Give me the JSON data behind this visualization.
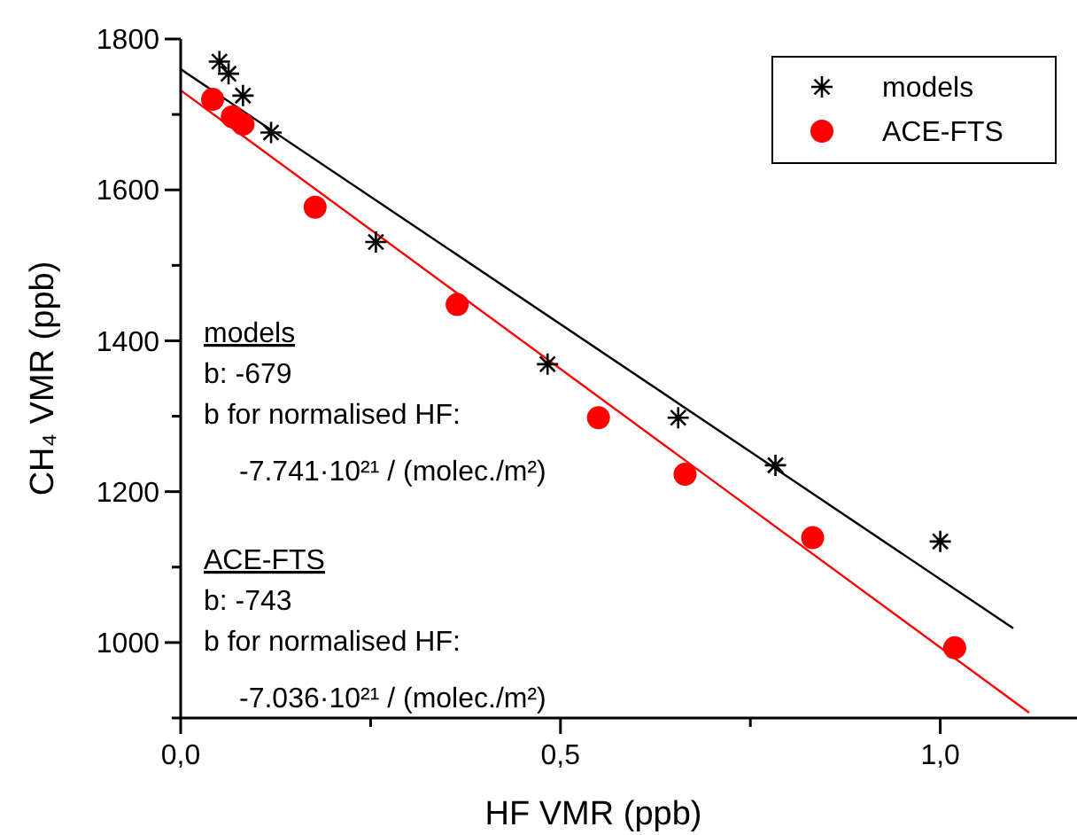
{
  "chart_data": {
    "type": "scatter",
    "xlabel": "HF VMR (ppb)",
    "ylabel": "CH₄ VMR (ppb)",
    "xlim": [
      0,
      1.18
    ],
    "xticks": [
      {
        "value": 0,
        "label": "0,0"
      },
      {
        "value": 0.25,
        "label": null
      },
      {
        "value": 0.5,
        "label": "0,5"
      },
      {
        "value": 0.75,
        "label": null
      },
      {
        "value": 1,
        "label": "1,0"
      }
    ],
    "ylim": [
      900,
      1800
    ],
    "yticks": [
      {
        "value": 900,
        "label": null
      },
      1000,
      {
        "value": 1100,
        "label": null
      },
      1200,
      {
        "value": 1300,
        "label": null
      },
      1400,
      {
        "value": 1500,
        "label": null
      },
      1600,
      {
        "value": 1700,
        "label": null
      },
      1800
    ],
    "grid": false,
    "legend": "top right",
    "series": [
      {
        "name": "models",
        "color": "#000000",
        "marker": "cross",
        "x": [
          0.051,
          0.063,
          0.082,
          0.119,
          0.257,
          0.483,
          0.655,
          0.783,
          1.0
        ],
        "values": [
          1770,
          1754,
          1725,
          1676,
          1531,
          1369,
          1298,
          1235,
          1134
        ]
      },
      {
        "name": "ACE-FTS",
        "color": "#ff0000",
        "marker": "circle",
        "x": [
          0.042,
          0.068,
          0.082,
          0.177,
          0.364,
          0.55,
          0.664,
          0.832,
          1.019
        ],
        "values": [
          1720,
          1697,
          1687,
          1577,
          1448,
          1298,
          1223,
          1139,
          993
        ]
      },
      {
        "color": "#000000",
        "type": "line",
        "x": [
          0,
          1.096
        ],
        "values": [
          1760,
          1019
        ]
      },
      {
        "color": "#ff0000",
        "type": "line",
        "x": [
          0,
          1.117
        ],
        "values": [
          1732,
          907
        ]
      }
    ],
    "annotations": [
      "models",
      "b: -679",
      "b for normalised HF:",
      "-7.741·10²¹ / (molec./m²)",
      "ACE-FTS",
      "b: -743",
      "b for normalised HF:",
      "-7.036·10²¹ / (molec./m²)"
    ]
  }
}
